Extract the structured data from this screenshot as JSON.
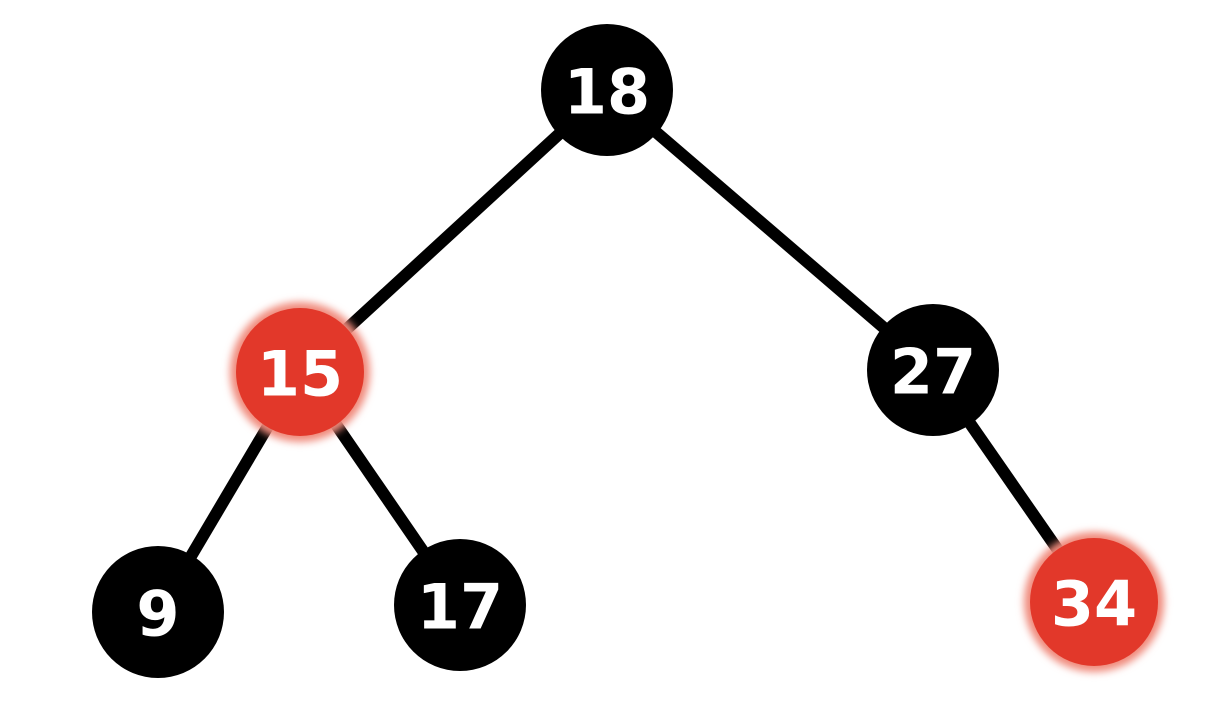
{
  "colors": {
    "black_node": "#000000",
    "red_node": "#e2382a",
    "red_glow": "#f08a7c",
    "edge": "#000000",
    "label": "#ffffff",
    "background": "#ffffff"
  },
  "tree": {
    "nodes": [
      {
        "id": "n18",
        "label": "18",
        "color": "black"
      },
      {
        "id": "n15",
        "label": "15",
        "color": "red"
      },
      {
        "id": "n27",
        "label": "27",
        "color": "black"
      },
      {
        "id": "n9",
        "label": "9",
        "color": "black"
      },
      {
        "id": "n17",
        "label": "17",
        "color": "black"
      },
      {
        "id": "n34",
        "label": "34",
        "color": "red"
      }
    ],
    "edges": [
      {
        "from": "n18",
        "to": "n15"
      },
      {
        "from": "n18",
        "to": "n27"
      },
      {
        "from": "n15",
        "to": "n9"
      },
      {
        "from": "n15",
        "to": "n17"
      },
      {
        "from": "n27",
        "to": "n34"
      }
    ]
  }
}
